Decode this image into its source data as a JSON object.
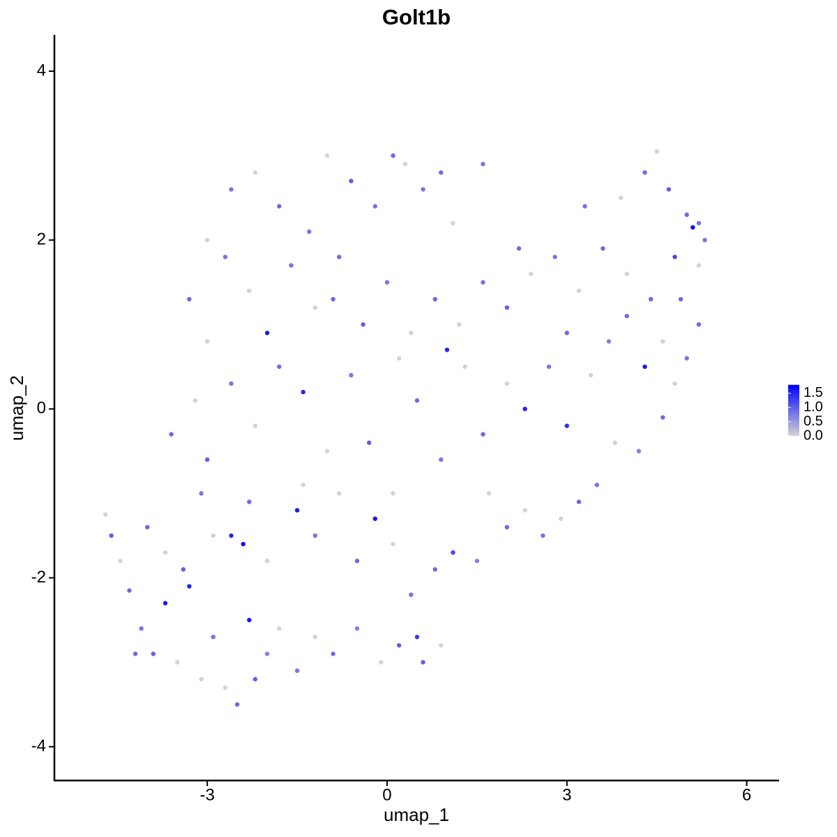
{
  "chart_data": {
    "type": "scatter",
    "title": "Golt1b",
    "x_label": "umap_1",
    "y_label": "umap_2",
    "xlim": [
      -5.55,
      6.54
    ],
    "ylim": [
      -4.4,
      4.43
    ],
    "xticks": [
      -3,
      0,
      3,
      6
    ],
    "yticks": [
      -4,
      -2,
      0,
      2,
      4
    ],
    "colors": [
      "#D3D3D3",
      "#0000FF"
    ],
    "color_lim": [
      0,
      1.8
    ],
    "colorbar_ticks": [
      {
        "value": 0,
        "label": "0.0"
      },
      0.5,
      {
        "value": 1,
        "label": "1.0"
      },
      1.5
    ],
    "x": [
      -4.7,
      -4.6,
      -4.45,
      -4.3,
      -4.1,
      -3.9,
      -3.7,
      -3.5,
      -3.3,
      -3.1,
      -2.9,
      -2.7,
      -2.5,
      -2.3,
      -2.2,
      -2.0,
      -1.8,
      -1.5,
      -1.2,
      -0.9,
      -0.5,
      -0.1,
      0.2,
      0.5,
      0.6,
      0.9,
      -4.0,
      -3.7,
      -3.4,
      -3.1,
      -2.9,
      -2.6,
      -2.3,
      -2.0,
      -1.5,
      -1.2,
      -0.8,
      -0.5,
      -0.2,
      0.1,
      0.4,
      0.8,
      1.1,
      1.5,
      1.7,
      2.0,
      2.3,
      2.6,
      2.9,
      3.2,
      3.5,
      3.8,
      4.2,
      4.6,
      4.8,
      5.0,
      5.2,
      -3.6,
      -3.2,
      -3.0,
      -2.6,
      -2.2,
      -1.8,
      -1.4,
      -1.0,
      -0.6,
      -0.3,
      0.2,
      0.5,
      0.9,
      1.3,
      1.6,
      2.0,
      2.3,
      2.7,
      3.0,
      3.4,
      3.7,
      4.0,
      4.3,
      4.6,
      -3.3,
      -3.0,
      -2.7,
      -2.3,
      -2.0,
      -1.6,
      -1.2,
      -0.8,
      -0.4,
      0.0,
      0.4,
      0.8,
      1.2,
      1.6,
      2.0,
      2.4,
      2.8,
      3.2,
      3.6,
      4.0,
      4.4,
      4.8,
      5.2,
      -3.0,
      -2.6,
      -2.2,
      -1.8,
      -1.3,
      -1.0,
      -0.6,
      -0.2,
      0.1,
      0.3,
      0.6,
      0.9,
      1.1,
      1.6,
      2.2,
      3.3,
      3.9,
      4.3,
      4.5,
      4.7,
      5.0,
      5.1,
      5.3,
      5.2,
      4.9,
      -4.2,
      -2.4,
      -1.4,
      0.1,
      -0.9,
      3.0,
      1.0
    ],
    "y": [
      -1.25,
      -1.5,
      -1.8,
      -2.15,
      -2.6,
      -2.9,
      -2.3,
      -3.0,
      -2.1,
      -3.2,
      -2.7,
      -3.3,
      -3.5,
      -2.5,
      -3.2,
      -2.9,
      -2.6,
      -3.1,
      -2.7,
      -2.9,
      -2.6,
      -3.0,
      -2.8,
      -2.7,
      -3.0,
      -2.8,
      -1.4,
      -1.7,
      -1.9,
      -1.0,
      -1.5,
      -1.5,
      -1.1,
      -1.8,
      -1.2,
      -1.5,
      -1.0,
      -1.8,
      -1.3,
      -1.6,
      -2.2,
      -1.9,
      -1.7,
      -1.8,
      -1.0,
      -1.4,
      -1.2,
      -1.5,
      -1.3,
      -1.1,
      -0.9,
      -0.4,
      -0.5,
      -0.1,
      0.3,
      0.6,
      1.0,
      -0.3,
      0.1,
      -0.6,
      0.3,
      -0.2,
      0.5,
      0.2,
      -0.5,
      0.4,
      -0.4,
      0.6,
      0.1,
      -0.6,
      0.5,
      -0.3,
      0.3,
      0.0,
      0.5,
      0.9,
      0.4,
      0.8,
      1.1,
      0.5,
      0.8,
      1.3,
      0.8,
      1.8,
      1.4,
      0.9,
      1.7,
      1.2,
      1.8,
      1.0,
      1.5,
      0.9,
      1.3,
      1.0,
      1.5,
      1.2,
      1.6,
      1.8,
      1.4,
      1.9,
      1.6,
      1.3,
      1.8,
      2.2,
      2.0,
      2.6,
      2.8,
      2.4,
      2.1,
      3.0,
      2.7,
      2.4,
      3.0,
      2.9,
      2.6,
      2.8,
      2.2,
      2.9,
      1.9,
      2.4,
      2.5,
      2.8,
      3.05,
      2.6,
      2.3,
      2.15,
      2.0,
      1.7,
      1.3,
      -2.9,
      -1.6,
      -0.9,
      -1.0,
      1.3,
      -0.2,
      0.7
    ],
    "expression": [
      0,
      1.0,
      0,
      0.9,
      0.8,
      1.0,
      1.6,
      0,
      1.5,
      0,
      0.8,
      0,
      0.9,
      1.6,
      1.0,
      0.7,
      0,
      0.8,
      0,
      0.9,
      0.7,
      0,
      1.0,
      1.3,
      1.0,
      0,
      0.9,
      0,
      1.0,
      0.8,
      0,
      1.5,
      0.9,
      0,
      1.6,
      0.8,
      0,
      0.9,
      1.6,
      0,
      0.8,
      0.9,
      1.2,
      0.7,
      0,
      0.9,
      0,
      0.8,
      0,
      0.9,
      0.8,
      0,
      0.7,
      0.9,
      0,
      0.8,
      0.9,
      0.9,
      0,
      1.0,
      0.8,
      0,
      0.9,
      1.5,
      0,
      0.8,
      1.0,
      0,
      0.9,
      0.8,
      0,
      0.9,
      0,
      1.5,
      0.8,
      0.9,
      0,
      0.7,
      0.9,
      1.6,
      0,
      0.9,
      0,
      0.8,
      0,
      1.6,
      0.8,
      0,
      0.9,
      1.0,
      0.8,
      0,
      0.9,
      0,
      0.8,
      1.0,
      0,
      0.8,
      0,
      0.9,
      0,
      0.9,
      1.2,
      0.8,
      0,
      0.8,
      0,
      0.9,
      0.8,
      0,
      1.0,
      0.8,
      0.9,
      0,
      0.8,
      0.9,
      0,
      0.8,
      0.9,
      0.8,
      0,
      0.9,
      0,
      1.0,
      0.9,
      1.7,
      0.8,
      0,
      0.9,
      0.9,
      1.7,
      0,
      0,
      0.9,
      1.4,
      1.5
    ]
  }
}
